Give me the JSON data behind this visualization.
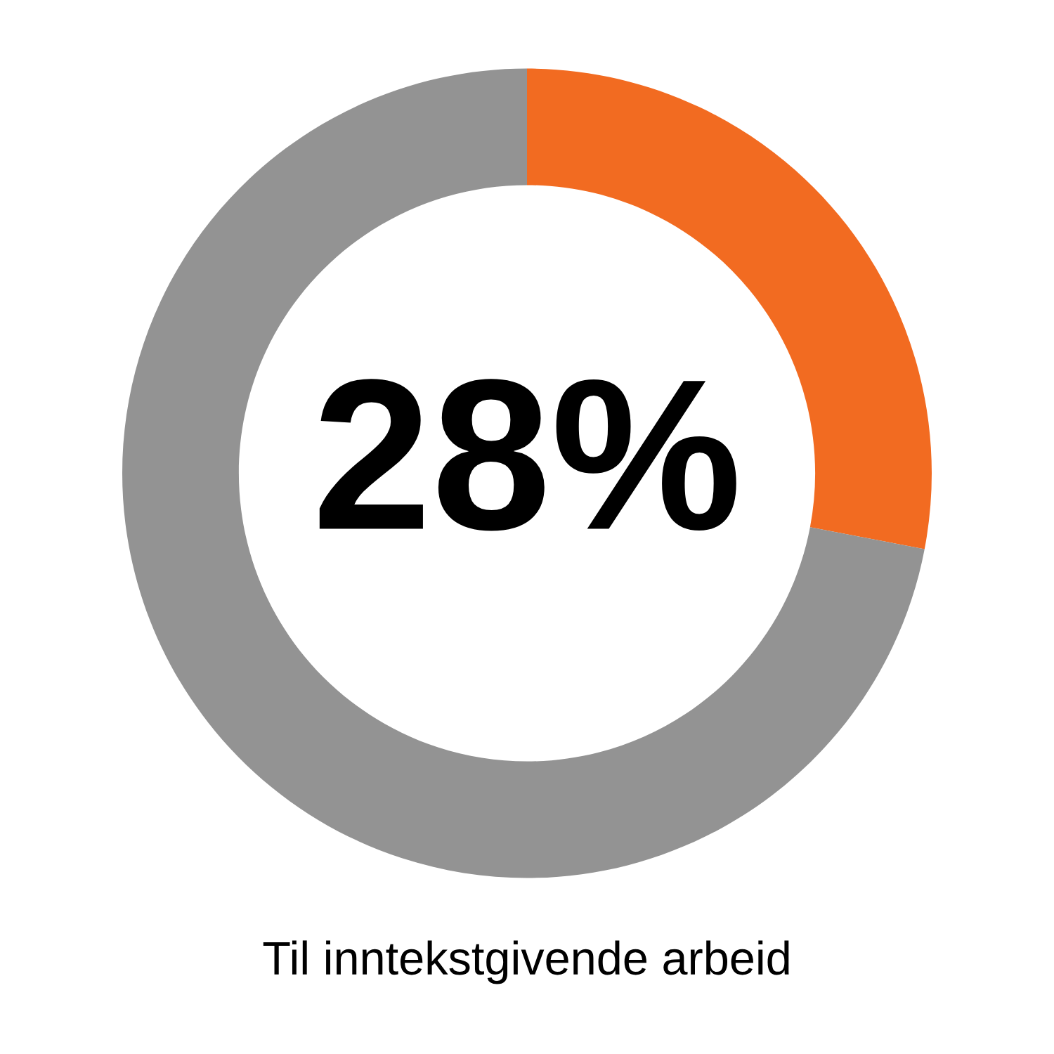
{
  "chart_data": {
    "type": "donut",
    "title": "Til inntekstgivende arbeid",
    "categories": [
      null,
      null
    ],
    "values": [
      28,
      72
    ],
    "colors": [
      "#f26b21",
      "#939393"
    ],
    "value_labels": [
      "28%",
      null
    ]
  }
}
